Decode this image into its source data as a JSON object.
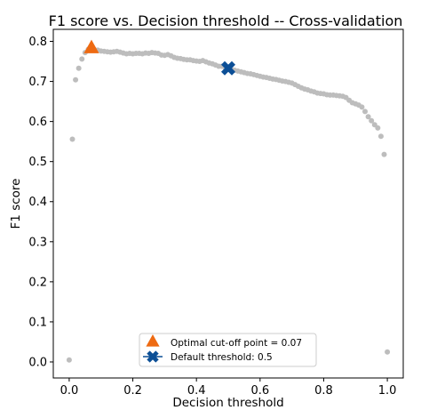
{
  "chart_data": {
    "type": "scatter",
    "title": "F1 score vs. Decision threshold -- Cross-validation",
    "xlabel": "Decision threshold",
    "ylabel": "F1 score",
    "xlim": [
      -0.05,
      1.05
    ],
    "ylim": [
      -0.04,
      0.83
    ],
    "xticks": [
      0.0,
      0.2,
      0.4,
      0.6,
      0.8,
      1.0
    ],
    "yticks": [
      0.0,
      0.1,
      0.2,
      0.3,
      0.4,
      0.5,
      0.6,
      0.7,
      0.8
    ],
    "grid": false,
    "legend_position": "lower-center",
    "series": [
      {
        "kind": "points",
        "color": "#bdbdbd",
        "x": [
          0.0,
          0.01,
          0.02,
          0.03,
          0.04,
          0.05,
          0.06,
          0.07,
          0.08,
          0.09,
          0.1,
          0.11,
          0.12,
          0.13,
          0.14,
          0.15,
          0.16,
          0.17,
          0.18,
          0.19,
          0.2,
          0.21,
          0.22,
          0.23,
          0.24,
          0.25,
          0.26,
          0.27,
          0.28,
          0.29,
          0.3,
          0.31,
          0.32,
          0.33,
          0.34,
          0.35,
          0.36,
          0.37,
          0.38,
          0.39,
          0.4,
          0.41,
          0.42,
          0.43,
          0.44,
          0.45,
          0.46,
          0.47,
          0.48,
          0.49,
          0.5,
          0.51,
          0.52,
          0.53,
          0.54,
          0.55,
          0.56,
          0.57,
          0.58,
          0.59,
          0.6,
          0.61,
          0.62,
          0.63,
          0.64,
          0.65,
          0.66,
          0.67,
          0.68,
          0.69,
          0.7,
          0.71,
          0.72,
          0.73,
          0.74,
          0.75,
          0.76,
          0.77,
          0.78,
          0.79,
          0.8,
          0.81,
          0.82,
          0.83,
          0.84,
          0.85,
          0.86,
          0.87,
          0.88,
          0.89,
          0.9,
          0.91,
          0.92,
          0.93,
          0.94,
          0.95,
          0.96,
          0.97,
          0.98,
          0.99,
          1.0
        ],
        "y": [
          0.005,
          0.556,
          0.704,
          0.733,
          0.756,
          0.772,
          0.78,
          0.782,
          0.779,
          0.778,
          0.776,
          0.775,
          0.774,
          0.773,
          0.774,
          0.775,
          0.773,
          0.771,
          0.769,
          0.77,
          0.769,
          0.77,
          0.77,
          0.769,
          0.771,
          0.77,
          0.772,
          0.771,
          0.77,
          0.766,
          0.765,
          0.767,
          0.764,
          0.76,
          0.758,
          0.757,
          0.755,
          0.754,
          0.754,
          0.752,
          0.751,
          0.75,
          0.752,
          0.749,
          0.746,
          0.744,
          0.741,
          0.738,
          0.738,
          0.735,
          0.733,
          0.73,
          0.728,
          0.726,
          0.724,
          0.722,
          0.72,
          0.719,
          0.717,
          0.715,
          0.713,
          0.711,
          0.71,
          0.708,
          0.706,
          0.705,
          0.703,
          0.701,
          0.7,
          0.698,
          0.696,
          0.692,
          0.688,
          0.684,
          0.681,
          0.679,
          0.676,
          0.674,
          0.671,
          0.67,
          0.669,
          0.667,
          0.666,
          0.666,
          0.665,
          0.664,
          0.663,
          0.66,
          0.653,
          0.647,
          0.644,
          0.641,
          0.636,
          0.625,
          0.612,
          0.602,
          0.592,
          0.584,
          0.563,
          0.518,
          0.025
        ]
      }
    ],
    "markers": [
      {
        "label": "Optimal cut-off point = 0.07",
        "shape": "triangle-up",
        "color": "#ee6a12",
        "x": 0.07,
        "y": 0.782
      },
      {
        "label": "Default threshold: 0.5",
        "shape": "x-filled",
        "color": "#0c4f96",
        "x": 0.5,
        "y": 0.733
      }
    ]
  }
}
